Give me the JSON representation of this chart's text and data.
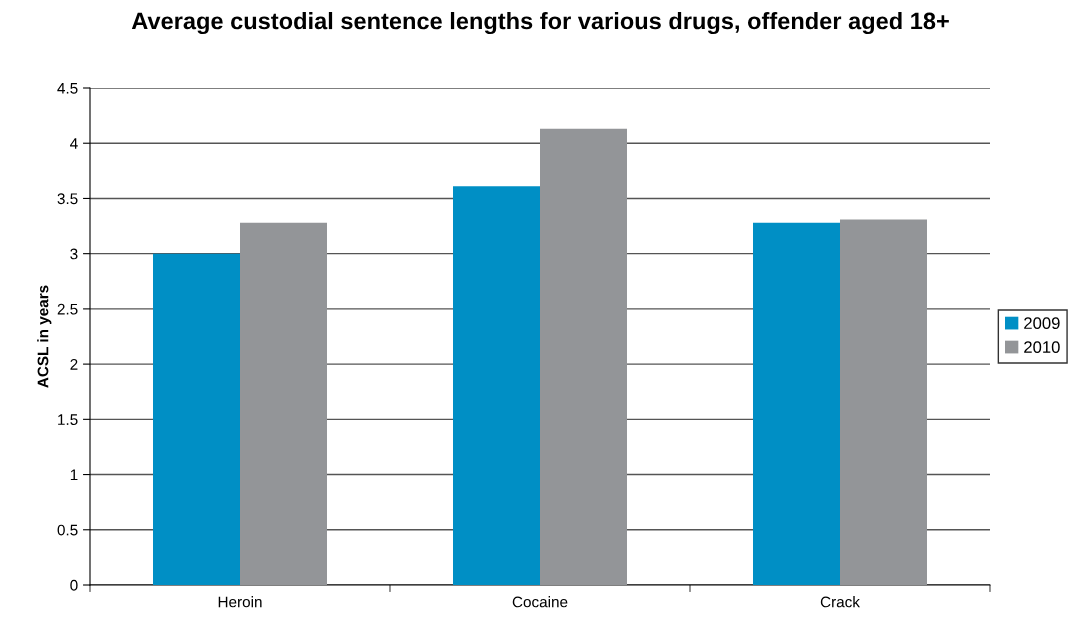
{
  "chart_data": {
    "type": "bar",
    "title": "Average custodial sentence lengths for various drugs, offender aged 18+",
    "ylabel": "ACSL in years",
    "categories": [
      "Heroin",
      "Cocaine",
      "Crack"
    ],
    "series": [
      {
        "name": "2009",
        "color": "#008fc5",
        "values": [
          3.0,
          3.61,
          3.28
        ]
      },
      {
        "name": "2010",
        "color": "#939598",
        "values": [
          3.28,
          4.13,
          3.31
        ]
      }
    ],
    "ylim": [
      0,
      4.5
    ],
    "yticks": [
      0,
      0.5,
      1,
      1.5,
      2,
      2.5,
      3,
      3.5,
      4,
      4.5
    ],
    "grid": "y",
    "legend": "right"
  }
}
